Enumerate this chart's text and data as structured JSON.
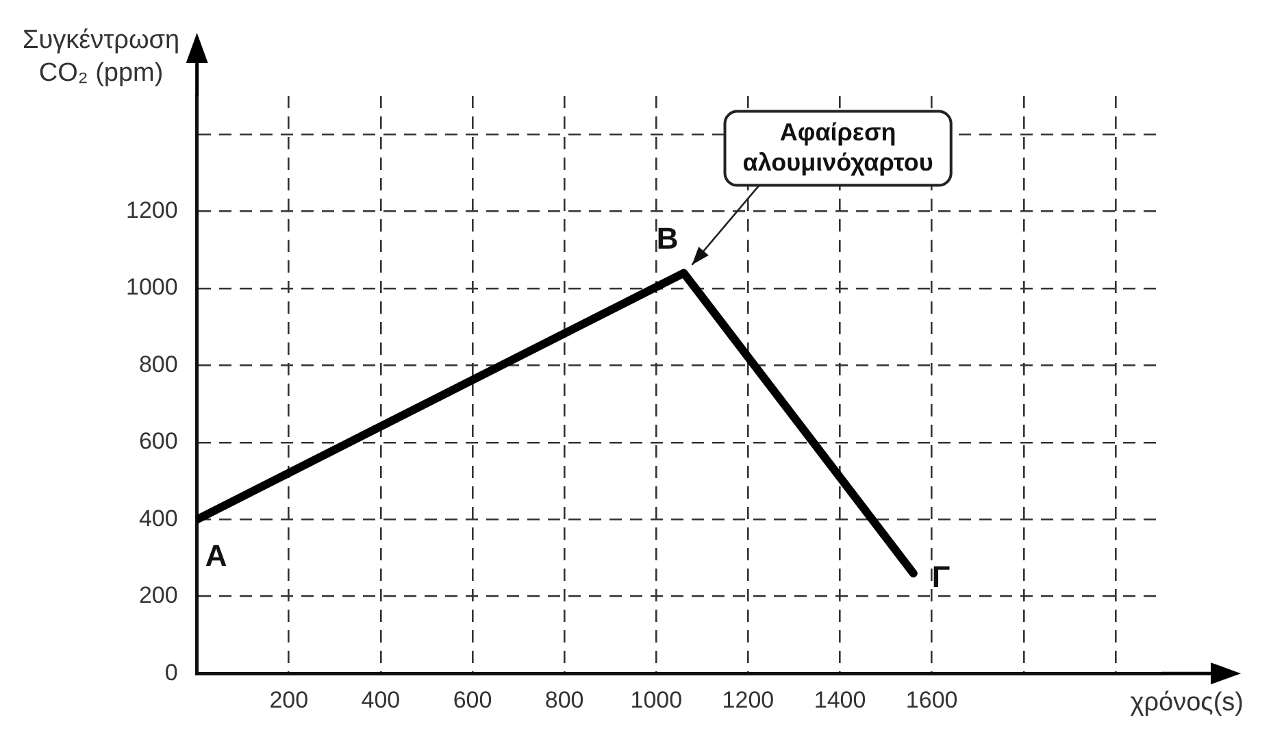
{
  "chart_data": {
    "type": "line",
    "xlabel": "χρόνος(s)",
    "ylabel": "Συγκέντρωση CO₂ (ppm)",
    "x": [
      0,
      1060,
      1560
    ],
    "series": [
      {
        "color": "#000000",
        "values": [
          400,
          1040,
          260
        ]
      }
    ],
    "xlim": [
      0,
      2100
    ],
    "xticks": [
      200,
      400,
      600,
      800,
      1000,
      1200,
      1400,
      1600,
      {
        "value": 1800,
        "label": null
      },
      {
        "value": 2000,
        "label": null
      }
    ],
    "ylim": [
      0,
      1500
    ],
    "yticks": [
      0,
      200,
      400,
      600,
      800,
      1000,
      1200,
      {
        "value": 1400,
        "label": null
      }
    ],
    "grid": true,
    "legend": false,
    "marker": "none",
    "line_style": "solid",
    "annotations": [
      {
        "text": "A",
        "x": 0,
        "y": 400
      },
      {
        "text": "B",
        "x": 1060,
        "y": 1040
      },
      {
        "text": "Γ",
        "x": 1560,
        "y": 260
      },
      {
        "text": "Αφαίρεση αλουμινόχαρτου",
        "x": 1060,
        "y": 1040
      }
    ]
  }
}
